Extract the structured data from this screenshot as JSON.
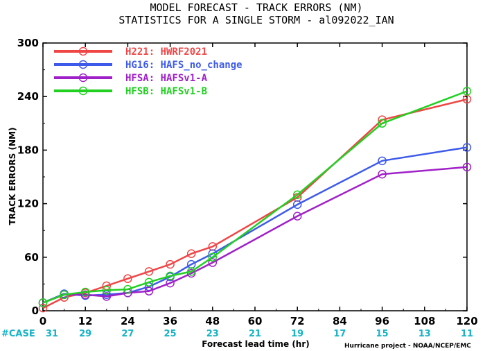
{
  "chart_data": {
    "type": "line",
    "title": "MODEL FORECAST - TRACK ERRORS (NM)",
    "subtitle": "STATISTICS FOR A SINGLE STORM - al092022_IAN",
    "xlabel": "Forecast lead time (hr)",
    "ylabel": "TRACK ERRORS (NM)",
    "xlim": [
      0,
      120
    ],
    "ylim": [
      0,
      300
    ],
    "xticks": [
      0,
      12,
      24,
      36,
      48,
      60,
      72,
      84,
      96,
      108,
      120
    ],
    "yticks": [
      0,
      60,
      120,
      180,
      240,
      300
    ],
    "x_tick_labels": [
      "0",
      "12",
      "24",
      "36",
      "48",
      "60",
      "72",
      "84",
      "96",
      "108",
      "120"
    ],
    "y_tick_labels": [
      "0",
      "60",
      "120",
      "180",
      "240",
      "300"
    ],
    "case_label": "#CASE",
    "cases": [
      "31",
      "29",
      "27",
      "25",
      "23",
      "21",
      "19",
      "17",
      "15",
      "13",
      "11"
    ],
    "legend_position": "top-left",
    "series": [
      {
        "name": "H221: HWRF2021",
        "color": "#f04545",
        "x": [
          0,
          6,
          12,
          18,
          24,
          30,
          36,
          42,
          48,
          72,
          96,
          120
        ],
        "y": [
          3,
          15,
          20,
          28,
          36,
          44,
          52,
          64,
          72,
          127,
          214,
          237
        ]
      },
      {
        "name": "HG16: HAFS_no_change",
        "color": "#3d5aeb",
        "x": [
          0,
          6,
          12,
          18,
          24,
          30,
          36,
          42,
          48,
          72,
          96,
          120
        ],
        "y": [
          9,
          19,
          17,
          18,
          20,
          27,
          38,
          52,
          64,
          119,
          168,
          183
        ]
      },
      {
        "name": "HFSA: HAFSv1-A",
        "color": "#a020c8",
        "x": [
          0,
          6,
          12,
          18,
          24,
          30,
          36,
          42,
          48,
          72,
          96,
          120
        ],
        "y": [
          9,
          18,
          18,
          16,
          20,
          22,
          31,
          42,
          54,
          106,
          153,
          161
        ]
      },
      {
        "name": "HFSB: HAFSv1-B",
        "color": "#22d022",
        "x": [
          0,
          6,
          12,
          18,
          24,
          30,
          36,
          42,
          48,
          72,
          96,
          120
        ],
        "y": [
          9,
          18,
          21,
          23,
          24,
          32,
          39,
          44,
          60,
          130,
          210,
          246
        ]
      }
    ]
  },
  "credit": "Hurricane project - NOAA/NCEP/EMC"
}
